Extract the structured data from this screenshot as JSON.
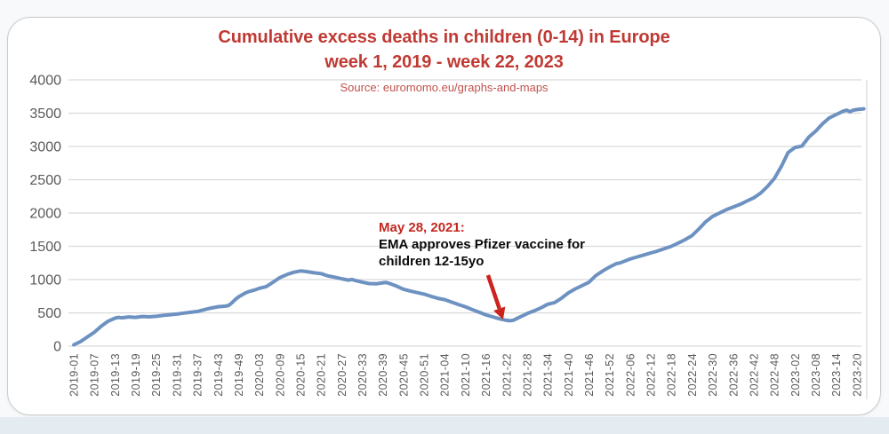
{
  "header": {
    "title": "Cumulative excess deaths in children (0-14) in Europe",
    "subtitle": "week 1, 2019 - week 22, 2023",
    "source": "Source: euromomo.eu/graphs-and-maps"
  },
  "annotation": {
    "date_line": "May 28, 2021:",
    "line1": "EMA approves Pfizer vaccine for",
    "line2": "children 12-15yo"
  },
  "colors": {
    "title_red": "#c03a34",
    "source_red": "#c0524c",
    "annotation_date_red": "#c3281f",
    "annotation_text": "#0b0b0b",
    "arrow_red": "#cc231c",
    "line_blue": "#6d92c1",
    "grid_gray": "#d9d9d9",
    "tick_gray": "#595959",
    "card_border": "#c9cccf",
    "page_bg": "#f7f9fa",
    "bottom_strip": "#e4ebf1"
  },
  "chart_data": {
    "type": "line",
    "title": "Cumulative excess deaths in children (0-14) in Europe",
    "subtitle": "week 1, 2019 - week 22, 2023",
    "source": "Source: euromomo.eu/graphs-and-maps",
    "xlabel": "",
    "ylabel": "",
    "x_unit": "ISO year-week (x values below are weeks since 2019-W01)",
    "ylim": [
      0,
      4000
    ],
    "yticks": [
      0,
      500,
      1000,
      1500,
      2000,
      2500,
      3000,
      3500,
      4000
    ],
    "grid": true,
    "legend": "none",
    "x_tick_weeks": [
      0,
      6,
      12,
      18,
      24,
      30,
      36,
      42,
      48,
      54,
      60,
      66,
      72,
      78,
      84,
      90,
      96,
      102,
      108,
      114,
      120,
      126,
      132,
      138,
      144,
      150,
      156,
      162,
      168,
      174,
      180,
      186,
      192,
      198,
      204,
      210,
      216,
      222,
      228
    ],
    "x_tick_labels": [
      "2019-01",
      "2019-07",
      "2019-13",
      "2019-19",
      "2019-25",
      "2019-31",
      "2019-37",
      "2019-43",
      "2019-49",
      "2020-03",
      "2020-09",
      "2020-15",
      "2020-21",
      "2020-27",
      "2020-33",
      "2020-39",
      "2020-45",
      "2020-51",
      "2021-04",
      "2021-10",
      "2021-16",
      "2021-22",
      "2021-28",
      "2021-34",
      "2021-40",
      "2021-46",
      "2021-52",
      "2022-06",
      "2022-12",
      "2022-18",
      "2022-24",
      "2022-30",
      "2022-36",
      "2022-42",
      "2022-48",
      "2023-02",
      "2023-08",
      "2023-14",
      "2023-20"
    ],
    "series": [
      {
        "name": "Cumulative excess deaths, children 0-14, Europe",
        "points": [
          [
            0,
            20
          ],
          [
            2,
            70
          ],
          [
            4,
            140
          ],
          [
            6,
            210
          ],
          [
            8,
            300
          ],
          [
            10,
            375
          ],
          [
            12,
            420
          ],
          [
            13,
            432
          ],
          [
            14,
            426
          ],
          [
            16,
            438
          ],
          [
            18,
            432
          ],
          [
            20,
            446
          ],
          [
            22,
            440
          ],
          [
            24,
            448
          ],
          [
            26,
            462
          ],
          [
            28,
            472
          ],
          [
            30,
            482
          ],
          [
            32,
            496
          ],
          [
            34,
            508
          ],
          [
            36,
            522
          ],
          [
            38,
            548
          ],
          [
            40,
            572
          ],
          [
            42,
            592
          ],
          [
            44,
            600
          ],
          [
            45,
            610
          ],
          [
            46,
            650
          ],
          [
            47,
            700
          ],
          [
            48,
            740
          ],
          [
            49,
            770
          ],
          [
            50,
            800
          ],
          [
            51,
            820
          ],
          [
            52,
            835
          ],
          [
            53,
            850
          ],
          [
            54,
            870
          ],
          [
            55,
            882
          ],
          [
            56,
            895
          ],
          [
            57,
            925
          ],
          [
            58,
            960
          ],
          [
            59,
            995
          ],
          [
            60,
            1030
          ],
          [
            62,
            1075
          ],
          [
            64,
            1110
          ],
          [
            66,
            1130
          ],
          [
            67,
            1125
          ],
          [
            68,
            1118
          ],
          [
            70,
            1102
          ],
          [
            72,
            1090
          ],
          [
            74,
            1055
          ],
          [
            76,
            1035
          ],
          [
            78,
            1012
          ],
          [
            80,
            992
          ],
          [
            81,
            1002
          ],
          [
            82,
            986
          ],
          [
            84,
            962
          ],
          [
            86,
            940
          ],
          [
            88,
            936
          ],
          [
            90,
            952
          ],
          [
            91,
            956
          ],
          [
            92,
            940
          ],
          [
            94,
            902
          ],
          [
            96,
            855
          ],
          [
            98,
            828
          ],
          [
            100,
            804
          ],
          [
            102,
            782
          ],
          [
            104,
            748
          ],
          [
            106,
            718
          ],
          [
            108,
            698
          ],
          [
            110,
            662
          ],
          [
            112,
            626
          ],
          [
            114,
            592
          ],
          [
            116,
            550
          ],
          [
            118,
            510
          ],
          [
            120,
            470
          ],
          [
            122,
            440
          ],
          [
            124,
            410
          ],
          [
            126,
            388
          ],
          [
            127,
            382
          ],
          [
            128,
            390
          ],
          [
            130,
            438
          ],
          [
            132,
            490
          ],
          [
            134,
            530
          ],
          [
            136,
            575
          ],
          [
            138,
            630
          ],
          [
            140,
            655
          ],
          [
            142,
            720
          ],
          [
            144,
            800
          ],
          [
            146,
            860
          ],
          [
            148,
            910
          ],
          [
            150,
            960
          ],
          [
            152,
            1060
          ],
          [
            154,
            1130
          ],
          [
            156,
            1190
          ],
          [
            158,
            1240
          ],
          [
            159,
            1250
          ],
          [
            160,
            1270
          ],
          [
            162,
            1310
          ],
          [
            164,
            1340
          ],
          [
            166,
            1370
          ],
          [
            168,
            1400
          ],
          [
            170,
            1430
          ],
          [
            172,
            1465
          ],
          [
            174,
            1500
          ],
          [
            176,
            1550
          ],
          [
            178,
            1600
          ],
          [
            180,
            1660
          ],
          [
            182,
            1760
          ],
          [
            184,
            1870
          ],
          [
            186,
            1950
          ],
          [
            188,
            2000
          ],
          [
            190,
            2050
          ],
          [
            192,
            2090
          ],
          [
            194,
            2130
          ],
          [
            196,
            2180
          ],
          [
            198,
            2230
          ],
          [
            200,
            2300
          ],
          [
            202,
            2400
          ],
          [
            204,
            2520
          ],
          [
            206,
            2700
          ],
          [
            208,
            2910
          ],
          [
            210,
            2985
          ],
          [
            211,
            2995
          ],
          [
            212,
            3005
          ],
          [
            214,
            3140
          ],
          [
            216,
            3230
          ],
          [
            218,
            3340
          ],
          [
            220,
            3430
          ],
          [
            222,
            3480
          ],
          [
            224,
            3530
          ],
          [
            225,
            3545
          ],
          [
            226,
            3520
          ],
          [
            227,
            3545
          ],
          [
            228,
            3555
          ],
          [
            230,
            3565
          ]
        ]
      }
    ],
    "annotation": {
      "text": "May 28, 2021: EMA approves Pfizer vaccine for children 12-15yo",
      "target_week": 125,
      "target_value": 400
    }
  }
}
